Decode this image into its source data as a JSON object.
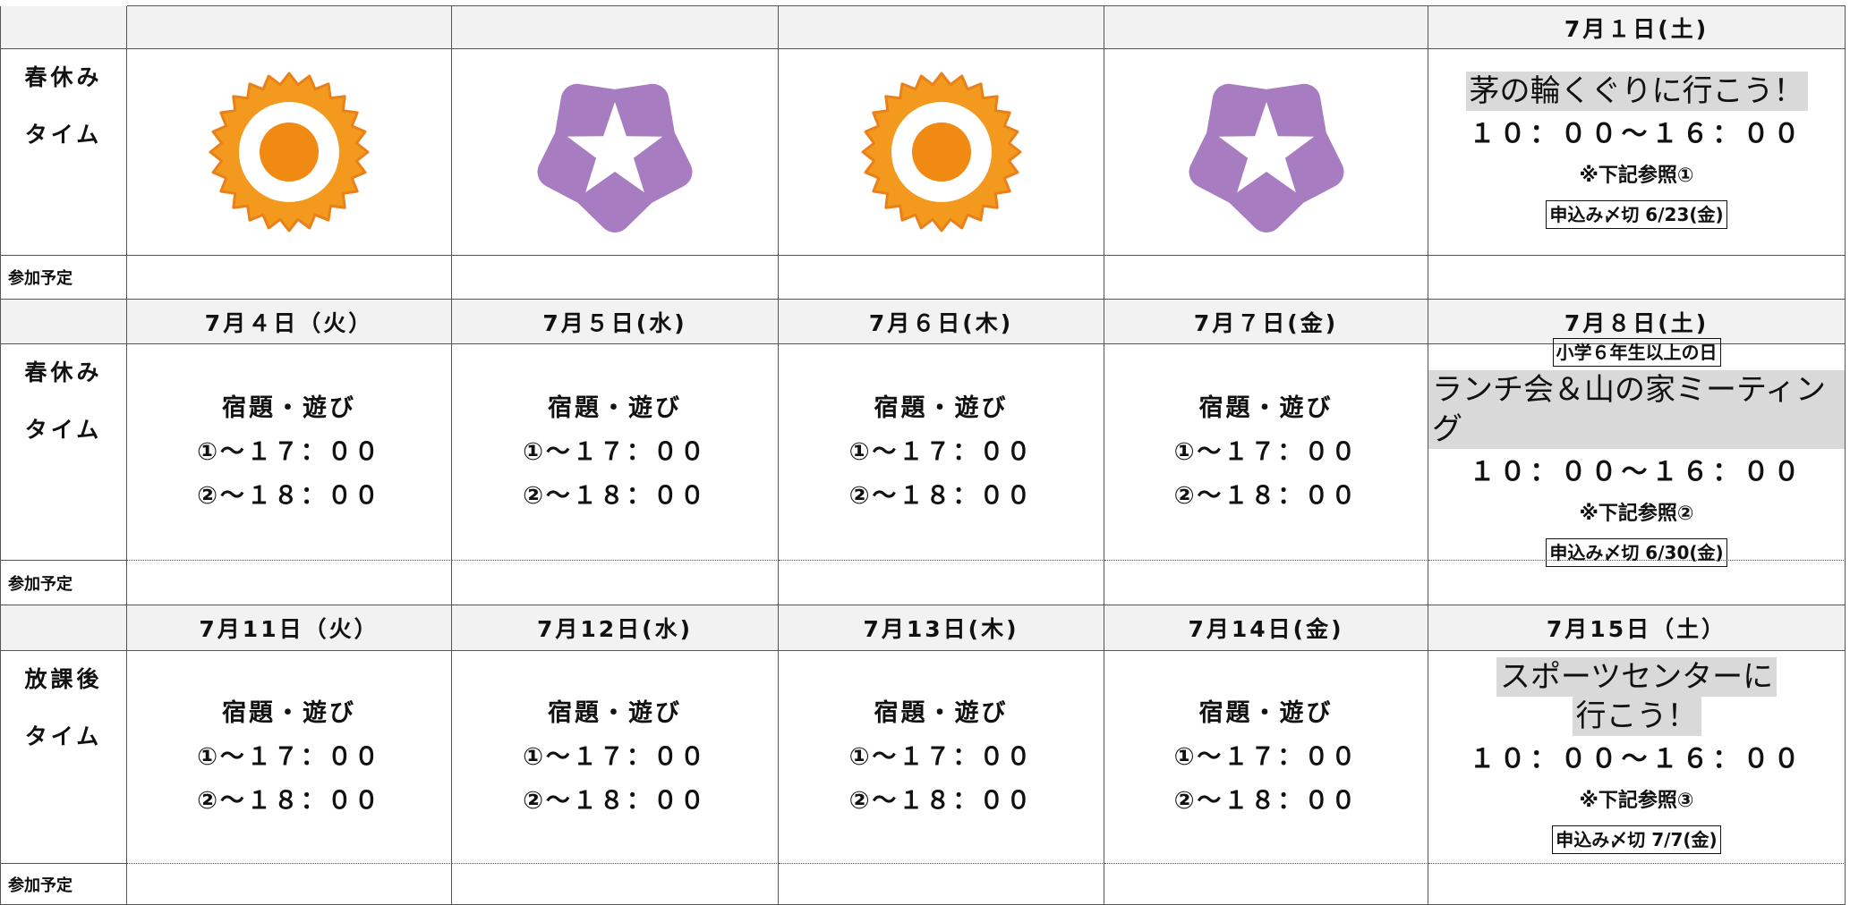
{
  "weeks": [
    {
      "label": [
        "春休み",
        "タイム"
      ],
      "participate": "参加予定",
      "days": [
        {
          "date": "7月１日(土)",
          "title": [
            "茅の輪くぐりに行こう！"
          ],
          "time": "１０：００～１６：００",
          "note": "※下記参照①",
          "deadline": "申込み〆切 6/23(金)"
        }
      ]
    },
    {
      "label": [
        "春休み",
        "タイム"
      ],
      "participate": "参加予定",
      "days": [
        {
          "date": "7月４日（火）",
          "lines": [
            "宿題・遊び",
            "①～１７：００",
            "②～１８：００"
          ]
        },
        {
          "date": "7月５日(水)",
          "lines": [
            "宿題・遊び",
            "①～１７：００",
            "②～１８：００"
          ]
        },
        {
          "date": "7月６日(木)",
          "lines": [
            "宿題・遊び",
            "①～１７：００",
            "②～１８：００"
          ]
        },
        {
          "date": "7月７日(金)",
          "lines": [
            "宿題・遊び",
            "①～１７：００",
            "②～１８：００"
          ]
        },
        {
          "date": "7月８日(土)",
          "badge": "小学６年生以上の日",
          "title": [
            "ランチ会＆山の家ミーティング"
          ],
          "time": "１０：００～１６：００",
          "note": "※下記参照②",
          "deadline": "申込み〆切 6/30(金)"
        }
      ]
    },
    {
      "label": [
        "放課後",
        "タイム"
      ],
      "participate": "参加予定",
      "days": [
        {
          "date": "7月11日（火）",
          "lines": [
            "宿題・遊び",
            "①～１７：００",
            "②～１８：００"
          ]
        },
        {
          "date": "7月12日(水)",
          "lines": [
            "宿題・遊び",
            "①～１７：００",
            "②～１８：００"
          ]
        },
        {
          "date": "7月13日(木)",
          "lines": [
            "宿題・遊び",
            "①～１７：００",
            "②～１８：００"
          ]
        },
        {
          "date": "7月14日(金)",
          "lines": [
            "宿題・遊び",
            "①～１７：００",
            "②～１８：００"
          ]
        },
        {
          "date": "7月15日（土）",
          "title": [
            "スポーツセンターに",
            "行こう！"
          ],
          "time": "１０：００～１６：００",
          "note": "※下記参照③",
          "deadline": "申込み〆切 7/7(金)"
        }
      ]
    }
  ]
}
